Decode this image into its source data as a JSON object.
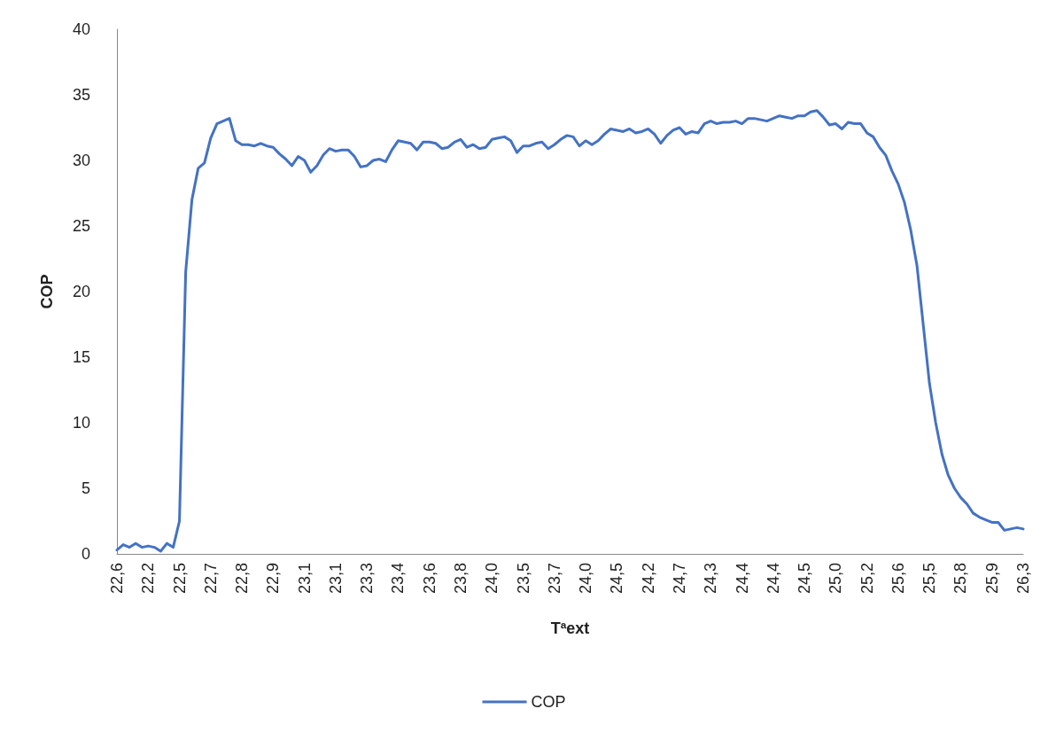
{
  "chart_data": {
    "type": "line",
    "xlabel": "Tªext",
    "ylabel": "COP",
    "categories": [
      "22,6",
      null,
      null,
      null,
      null,
      "22,2",
      null,
      null,
      null,
      null,
      "22,5",
      null,
      null,
      null,
      null,
      "22,7",
      null,
      null,
      null,
      null,
      "22,8",
      null,
      null,
      null,
      null,
      "22,9",
      null,
      null,
      null,
      null,
      "23,1",
      null,
      null,
      null,
      null,
      "23,1",
      null,
      null,
      null,
      null,
      "23,3",
      null,
      null,
      null,
      null,
      "23,4",
      null,
      null,
      null,
      null,
      "23,6",
      null,
      null,
      null,
      null,
      "23,8",
      null,
      null,
      null,
      null,
      "24,0",
      null,
      null,
      null,
      null,
      "23,5",
      null,
      null,
      null,
      null,
      "23,7",
      null,
      null,
      null,
      null,
      "24,0",
      null,
      null,
      null,
      null,
      "24,5",
      null,
      null,
      null,
      null,
      "24,2",
      null,
      null,
      null,
      null,
      "24,7",
      null,
      null,
      null,
      null,
      "24,3",
      null,
      null,
      null,
      null,
      "24,4",
      null,
      null,
      null,
      null,
      "24,4",
      null,
      null,
      null,
      null,
      "24,5",
      null,
      null,
      null,
      null,
      "25,0",
      null,
      null,
      null,
      null,
      "25,2",
      null,
      null,
      null,
      null,
      "25,6",
      null,
      null,
      null,
      null,
      "25,5",
      null,
      null,
      null,
      null,
      "25,8",
      null,
      null,
      null,
      null,
      "25,9",
      null,
      null,
      null,
      null,
      "26,3"
    ],
    "series": [
      {
        "name": "COP",
        "color": "#4472c4",
        "values": [
          0.3,
          0.7,
          0.5,
          0.8,
          0.5,
          0.6,
          0.5,
          0.2,
          0.8,
          0.5,
          2.5,
          21.5,
          27.0,
          29.4,
          29.8,
          31.7,
          32.8,
          33.0,
          33.2,
          31.5,
          31.2,
          31.2,
          31.1,
          31.3,
          31.1,
          31.0,
          30.5,
          30.1,
          29.6,
          30.3,
          30.0,
          29.1,
          29.6,
          30.4,
          30.9,
          30.7,
          30.8,
          30.8,
          30.3,
          29.5,
          29.6,
          30.0,
          30.1,
          29.9,
          30.8,
          31.5,
          31.4,
          31.3,
          30.8,
          31.4,
          31.4,
          31.3,
          30.9,
          31.0,
          31.4,
          31.6,
          31.0,
          31.2,
          30.9,
          31.0,
          31.6,
          31.7,
          31.8,
          31.5,
          30.6,
          31.1,
          31.1,
          31.3,
          31.4,
          30.9,
          31.2,
          31.6,
          31.9,
          31.8,
          31.1,
          31.5,
          31.2,
          31.5,
          32.0,
          32.4,
          32.3,
          32.2,
          32.4,
          32.1,
          32.2,
          32.4,
          32.0,
          31.3,
          31.9,
          32.3,
          32.5,
          32.0,
          32.2,
          32.1,
          32.8,
          33.0,
          32.8,
          32.9,
          32.9,
          33.0,
          32.8,
          33.2,
          33.2,
          33.1,
          33.0,
          33.2,
          33.4,
          33.3,
          33.2,
          33.4,
          33.4,
          33.7,
          33.8,
          33.3,
          32.7,
          32.8,
          32.4,
          32.9,
          32.8,
          32.8,
          32.1,
          31.8,
          31.0,
          30.4,
          29.2,
          28.2,
          26.8,
          24.7,
          22.0,
          17.5,
          13.0,
          10.0,
          7.6,
          6.0,
          5.0,
          4.3,
          3.8,
          3.1,
          2.8,
          2.6,
          2.4,
          2.4,
          1.8,
          1.9,
          2.0,
          1.9
        ]
      }
    ],
    "ylim": [
      0,
      40
    ],
    "yticks": [
      0,
      5,
      10,
      15,
      20,
      25,
      30,
      35,
      40
    ],
    "grid": false,
    "legend": "bottom",
    "marker": "none",
    "line_style": "solid"
  }
}
